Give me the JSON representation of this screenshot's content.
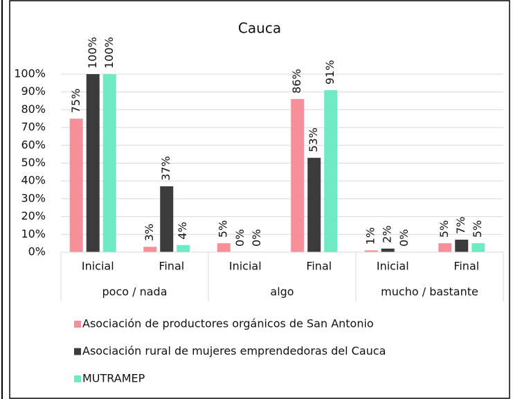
{
  "chart_data": {
    "type": "bar",
    "title": "Cauca",
    "categories": [
      "Inicial",
      "Final",
      "Inicial",
      "Final",
      "Inicial",
      "Final"
    ],
    "category_groups": [
      "poco / nada",
      "algo",
      "mucho / bastante"
    ],
    "series": [
      {
        "name": "Asociación de productores orgánicos de San Antonio",
        "color": "#f5909b",
        "values": [
          75,
          3,
          5,
          86,
          1,
          5
        ],
        "value_labels": [
          "75%",
          "3%",
          "5%",
          "86%",
          "1%",
          "5%"
        ]
      },
      {
        "name": "Asociación rural de mujeres emprendedoras del Cauca",
        "color": "#3b3b3b",
        "values": [
          100,
          37,
          0,
          53,
          2,
          7
        ],
        "value_labels": [
          "100%",
          "37%",
          "0%",
          "53%",
          "2%",
          "7%"
        ]
      },
      {
        "name": "MUTRAMEP",
        "color": "#6eeac4",
        "values": [
          100,
          4,
          0,
          91,
          0,
          5
        ],
        "value_labels": [
          "100%",
          "4%",
          "0%",
          "91%",
          "0%",
          "5%"
        ]
      }
    ],
    "ylim": [
      0,
      100
    ],
    "yticks": [
      {
        "value": 0,
        "label": "0%"
      },
      {
        "value": 10,
        "label": "10%"
      },
      {
        "value": 20,
        "label": "20%"
      },
      {
        "value": 30,
        "label": "30%"
      },
      {
        "value": 40,
        "label": "40%"
      },
      {
        "value": 50,
        "label": "50%"
      },
      {
        "value": 60,
        "label": "60%"
      },
      {
        "value": 70,
        "label": "70%"
      },
      {
        "value": 80,
        "label": "80%"
      },
      {
        "value": 90,
        "label": "90%"
      },
      {
        "value": 100,
        "label": "100%"
      }
    ],
    "grid": true,
    "legend": "bottom"
  }
}
